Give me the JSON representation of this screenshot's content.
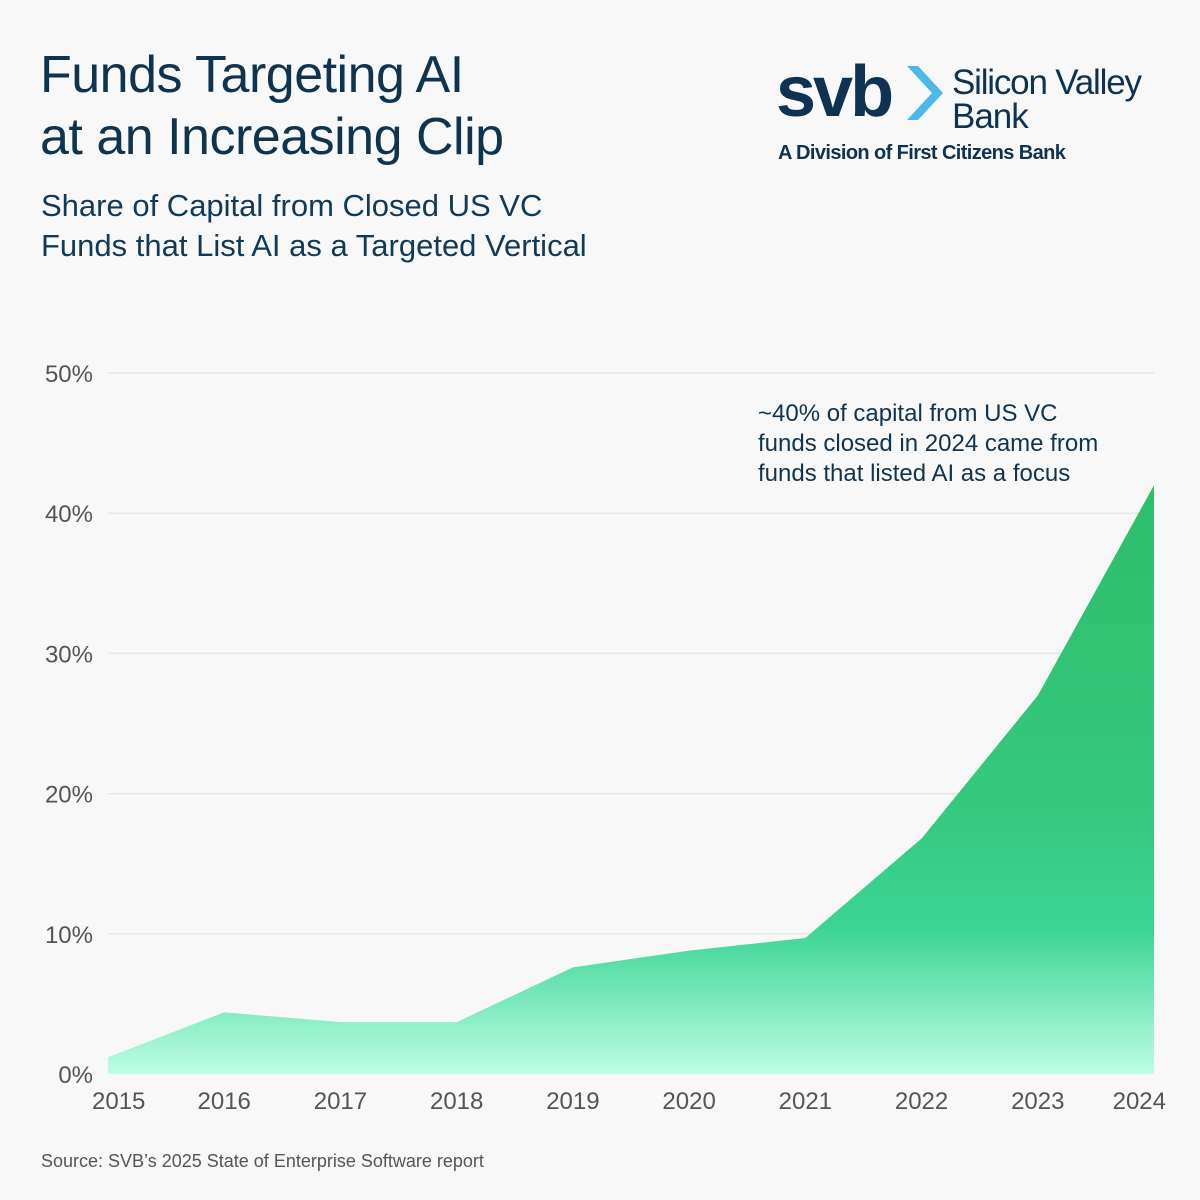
{
  "header": {
    "title_line1": "Funds Targeting AI",
    "title_line2": "at an Increasing Clip",
    "subtitle_line1": "Share of Capital from Closed US VC",
    "subtitle_line2": "Funds that List AI as a Targeted Vertical"
  },
  "logo": {
    "wordmark": "svb",
    "name_line1": "Silicon Valley",
    "name_line2": "Bank",
    "tagline": "A Division of First Citizens Bank",
    "icon": "chevron-right-icon",
    "colors": {
      "navy": "#0e3352",
      "chevron": "#4db8ea"
    }
  },
  "chart_data": {
    "type": "area",
    "categories": [
      "2015",
      "2016",
      "2017",
      "2018",
      "2019",
      "2020",
      "2021",
      "2022",
      "2023",
      "2024"
    ],
    "values": [
      1.2,
      4.4,
      3.7,
      3.7,
      7.6,
      8.8,
      9.7,
      16.8,
      27,
      42
    ],
    "y_ticks": [
      "0%",
      "10%",
      "20%",
      "30%",
      "40%",
      "50%"
    ],
    "ylim": [
      0,
      50
    ],
    "grid": true,
    "annotation": {
      "line1": "~40% of capital from US VC",
      "line2": "funds closed in 2024 came from",
      "line3": "funds that listed AI as a focus"
    },
    "colors": {
      "fill_top": "#2dbe6c",
      "fill_mid": "#3ad494",
      "fill_bottom": "#bdfde4",
      "grid": "#e6e6e6",
      "tick": "#555555"
    }
  },
  "footer": {
    "source": "Source: SVB’s 2025 State of Enterprise Software report"
  }
}
